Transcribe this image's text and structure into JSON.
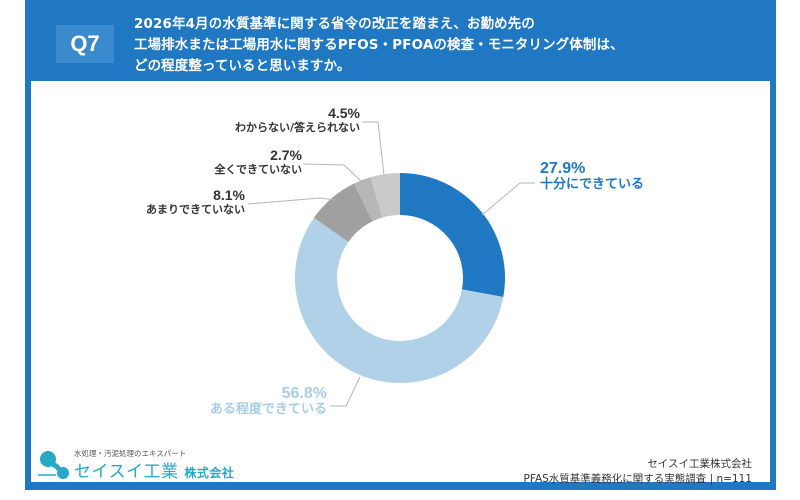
{
  "header": {
    "badge": "Q7",
    "question_lines": [
      "2026年4月の水質基準に関する省令の改正を踏まえ、お勤め先の",
      "工場排水または工場用水に関するPFOS・PFOAの検査・モニタリング体制は、",
      "どの程度整っていると思いますか。"
    ]
  },
  "labels": {
    "fully": {
      "pct": "27.9%",
      "cat": "十分にできている"
    },
    "somewhat": {
      "pct": "56.8%",
      "cat": "ある程度できている"
    },
    "not_much": {
      "pct": "8.1%",
      "cat": "あまりできていない"
    },
    "not_at_all": {
      "pct": "2.7%",
      "cat": "全くできていない"
    },
    "unknown": {
      "pct": "4.5%",
      "cat": "わからない/答えられない"
    }
  },
  "chart_data": {
    "type": "pie",
    "subtype": "donut",
    "title": "2026年4月の水質基準に関する省令の改正を踏まえ、お勤め先の工場排水または工場用水に関するPFOS・PFOAの検査・モニタリング体制は、どの程度整っていると思いますか。",
    "categories": [
      "十分にできている",
      "ある程度できている",
      "あまりできていない",
      "全くできていない",
      "わからない/答えられない"
    ],
    "values": [
      27.9,
      56.8,
      8.1,
      2.7,
      4.5
    ],
    "unit": "%",
    "colors": [
      "#1f78c1",
      "#b1d1e8",
      "#a0a0a0",
      "#b7b7b7",
      "#cacaca"
    ],
    "start_angle": "12 o'clock, clockwise",
    "n": 111
  },
  "colors": {
    "frame": "#1f78c1",
    "badge": "#3a8ace",
    "accent_dark": "#1f78c1",
    "accent_light": "#a9cde6",
    "label_gray": "#333333",
    "logo_teal": "#28a8c4"
  },
  "logo": {
    "tagline": "水処理・汚泥処理のエキスパート",
    "name": "セイスイ工業",
    "suffix": "株式会社"
  },
  "source": {
    "company": "セイスイ工業株式会社",
    "survey": "PFAS水質基準義務化に関する実態調査 | n=111"
  }
}
